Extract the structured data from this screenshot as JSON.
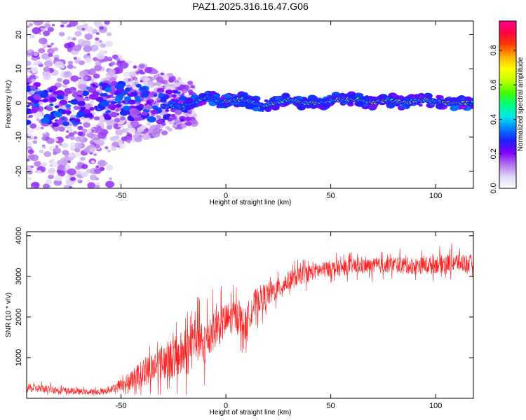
{
  "chart_data": [
    {
      "type": "heatmap",
      "title": "PAZ1.2025.316.16.47.G06",
      "xlabel": "Height of straight line (km)",
      "ylabel": "Frequency (Hz)",
      "xlim": [
        -95,
        118
      ],
      "ylim": [
        -25,
        24
      ],
      "xticks": [
        -50,
        0,
        50,
        100
      ],
      "yticks": [
        -20,
        -10,
        0,
        10,
        20
      ],
      "colorbar": {
        "label": "Normalized spectral amplitude",
        "range": [
          0.0,
          0.97
        ],
        "ticks": [
          0.0,
          0.2,
          0.4,
          0.6,
          0.8
        ],
        "tick_labels": [
          "0.0",
          "0.2",
          "0.4",
          "0.6",
          "0.8"
        ],
        "colors": [
          "#ffffff",
          "#e0d4f4",
          "#b070ee",
          "#8000ff",
          "#1a20ff",
          "#0080ff",
          "#00e8e8",
          "#00ff80",
          "#40ff00",
          "#c0ff00",
          "#ffff00",
          "#ffb000",
          "#ff4000",
          "#ff0040",
          "#ff0090"
        ]
      },
      "ridge": {
        "x": [
          -95,
          -80,
          -65,
          -50,
          -40,
          -30,
          -20,
          -12,
          -8,
          -3,
          3,
          8,
          13,
          18,
          23,
          30,
          38,
          45,
          52,
          58,
          63,
          70,
          77,
          85,
          95,
          105,
          118
        ],
        "freq": [
          0,
          -1,
          0,
          1,
          0,
          -1,
          -1,
          1,
          2,
          0,
          1,
          1,
          0,
          -1,
          0,
          1,
          0,
          0,
          1,
          1,
          1,
          0,
          1,
          0,
          1,
          0,
          0
        ]
      }
    },
    {
      "type": "line",
      "xlabel": "Height of straight line (km)",
      "ylabel": "SNR (10 * v/v)",
      "xlim": [
        -95,
        118
      ],
      "ylim": [
        0,
        4100
      ],
      "xticks": [
        -50,
        0,
        50,
        100
      ],
      "yticks": [
        1000,
        2000,
        3000,
        4000
      ],
      "color": "#ff2020",
      "series": [
        {
          "name": "SNR",
          "x": [
            -95,
            -85,
            -75,
            -65,
            -58,
            -52,
            -47,
            -42,
            -37,
            -32,
            -27,
            -22,
            -18,
            -15,
            -13,
            -11,
            -9,
            -6,
            -3,
            0,
            3,
            6,
            9,
            12,
            16,
            20,
            25,
            30,
            35,
            40,
            45,
            50,
            55,
            60,
            70,
            80,
            90,
            100,
            110,
            118
          ],
          "values": [
            250,
            230,
            180,
            150,
            170,
            280,
            400,
            550,
            700,
            850,
            950,
            1050,
            1200,
            1500,
            1750,
            1100,
            1500,
            1700,
            1800,
            1900,
            2000,
            2050,
            1750,
            2200,
            2450,
            2550,
            2700,
            2900,
            3000,
            3100,
            3150,
            3200,
            3200,
            3250,
            3250,
            3300,
            3250,
            3300,
            3350,
            3300
          ],
          "noise": [
            130,
            130,
            100,
            80,
            100,
            160,
            260,
            380,
            460,
            540,
            620,
            700,
            800,
            900,
            1100,
            700,
            750,
            650,
            600,
            550,
            500,
            500,
            500,
            480,
            420,
            380,
            320,
            300,
            280,
            260,
            250,
            250,
            240,
            240,
            240,
            250,
            260,
            280,
            300,
            300
          ]
        }
      ]
    }
  ]
}
